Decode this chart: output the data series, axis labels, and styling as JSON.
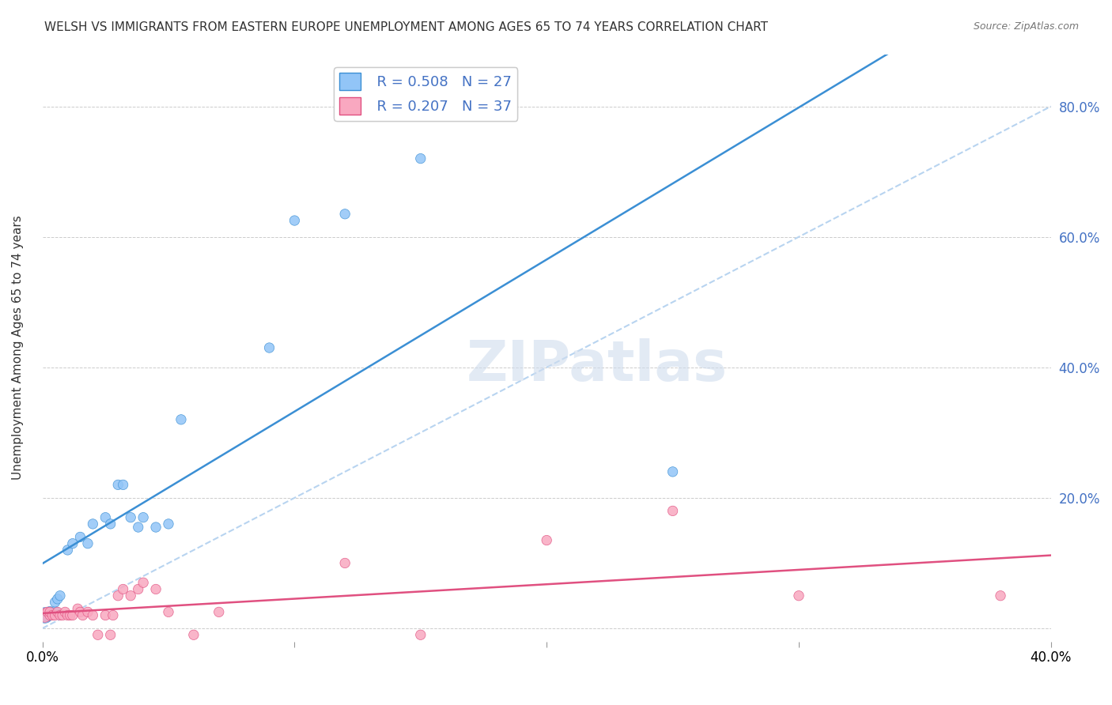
{
  "title": "WELSH VS IMMIGRANTS FROM EASTERN EUROPE UNEMPLOYMENT AMONG AGES 65 TO 74 YEARS CORRELATION CHART",
  "source": "Source: ZipAtlas.com",
  "xlabel": "",
  "ylabel": "Unemployment Among Ages 65 to 74 years",
  "xlim": [
    0.0,
    0.4
  ],
  "ylim": [
    -0.02,
    0.88
  ],
  "xticks": [
    0.0,
    0.05,
    0.1,
    0.15,
    0.2,
    0.25,
    0.3,
    0.35,
    0.4
  ],
  "xtick_labels": [
    "0.0%",
    "",
    "",
    "",
    "",
    "",
    "",
    "",
    "40.0%"
  ],
  "ytick_positions": [
    0.0,
    0.2,
    0.4,
    0.6,
    0.8
  ],
  "ytick_labels": [
    "",
    "20.0%",
    "40.0%",
    "60.0%",
    "80.0%"
  ],
  "welsh_R": 0.508,
  "welsh_N": 27,
  "immigrant_R": 0.207,
  "immigrant_N": 37,
  "welsh_color": "#92C5F7",
  "immigrant_color": "#F9A8C0",
  "welsh_line_color": "#3B8FD4",
  "immigrant_line_color": "#E05080",
  "diagonal_color": "#B8D4F0",
  "background_color": "#FFFFFF",
  "watermark": "ZIPatlas",
  "welsh_x": [
    0.001,
    0.002,
    0.003,
    0.005,
    0.005,
    0.006,
    0.007,
    0.01,
    0.012,
    0.015,
    0.018,
    0.02,
    0.025,
    0.027,
    0.03,
    0.032,
    0.035,
    0.038,
    0.04,
    0.045,
    0.05,
    0.055,
    0.09,
    0.1,
    0.12,
    0.15,
    0.25
  ],
  "welsh_y": [
    0.02,
    0.02,
    0.025,
    0.025,
    0.04,
    0.045,
    0.05,
    0.12,
    0.13,
    0.14,
    0.13,
    0.16,
    0.17,
    0.16,
    0.22,
    0.22,
    0.17,
    0.155,
    0.17,
    0.155,
    0.16,
    0.32,
    0.43,
    0.625,
    0.635,
    0.72,
    0.24
  ],
  "welsh_sizes": [
    200,
    120,
    100,
    100,
    80,
    80,
    80,
    80,
    80,
    80,
    80,
    80,
    80,
    80,
    80,
    80,
    80,
    80,
    80,
    80,
    80,
    80,
    80,
    80,
    80,
    80,
    80
  ],
  "immigrant_x": [
    0.001,
    0.002,
    0.003,
    0.003,
    0.004,
    0.005,
    0.006,
    0.007,
    0.008,
    0.009,
    0.01,
    0.011,
    0.012,
    0.014,
    0.015,
    0.016,
    0.018,
    0.02,
    0.022,
    0.025,
    0.027,
    0.028,
    0.03,
    0.032,
    0.035,
    0.038,
    0.04,
    0.045,
    0.05,
    0.06,
    0.07,
    0.12,
    0.15,
    0.2,
    0.25,
    0.3,
    0.38
  ],
  "immigrant_y": [
    0.02,
    0.025,
    0.02,
    0.025,
    0.02,
    0.02,
    0.025,
    0.02,
    0.02,
    0.025,
    0.02,
    0.02,
    0.02,
    0.03,
    0.025,
    0.02,
    0.025,
    0.02,
    -0.01,
    0.02,
    -0.01,
    0.02,
    0.05,
    0.06,
    0.05,
    0.06,
    0.07,
    0.06,
    0.025,
    -0.01,
    0.025,
    0.1,
    -0.01,
    0.135,
    0.18,
    0.05,
    0.05
  ],
  "immigrant_sizes": [
    160,
    80,
    80,
    80,
    80,
    80,
    80,
    80,
    80,
    80,
    80,
    80,
    80,
    80,
    80,
    80,
    80,
    80,
    80,
    80,
    80,
    80,
    80,
    80,
    80,
    80,
    80,
    80,
    80,
    80,
    80,
    80,
    80,
    80,
    80,
    80,
    80
  ]
}
